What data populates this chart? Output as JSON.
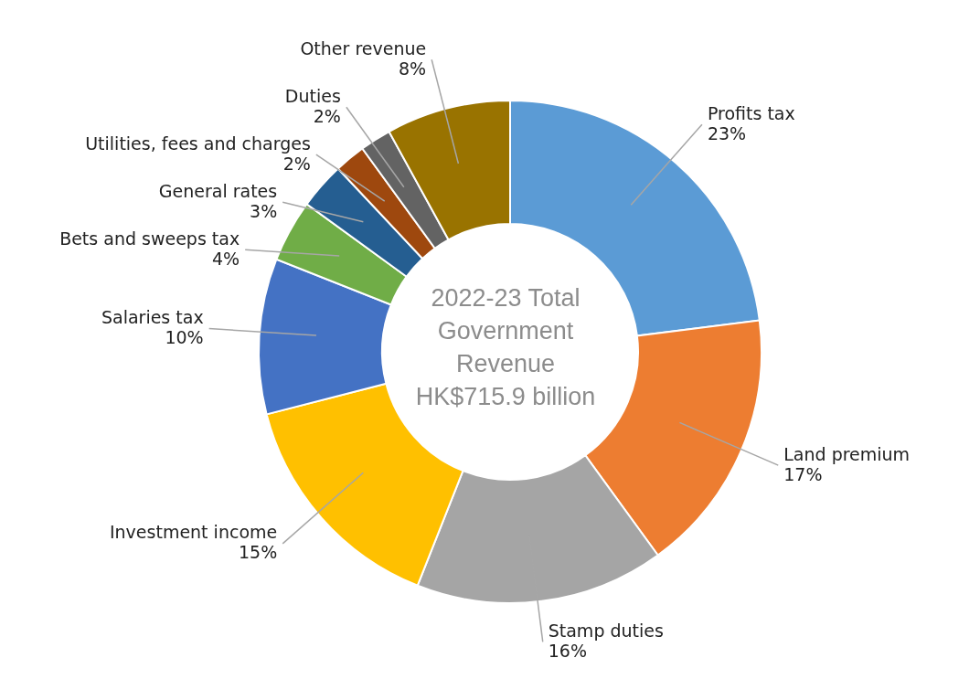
{
  "chart_data": {
    "type": "donut",
    "title": "2022-23 Total Government Revenue",
    "subtitle": "HK$715.9 billion",
    "categories": [
      "Profits tax",
      "Land premium",
      "Stamp duties",
      "Investment income",
      "Salaries tax",
      "Bets and sweeps tax",
      "General rates",
      "Utilities, fees and charges",
      "Duties",
      "Other revenue"
    ],
    "values": [
      23,
      17,
      16,
      15,
      10,
      4,
      3,
      2,
      2,
      8
    ],
    "value_labels": [
      "23%",
      "17%",
      "16%",
      "15%",
      "10%",
      "4%",
      "3%",
      "2%",
      "2%",
      "8%"
    ],
    "colors": [
      "#5b9bd5",
      "#ed7d31",
      "#a5a5a5",
      "#ffc000",
      "#4472c4",
      "#70ad47",
      "#255e91",
      "#9e480e",
      "#636363",
      "#997300"
    ],
    "legend": false
  }
}
